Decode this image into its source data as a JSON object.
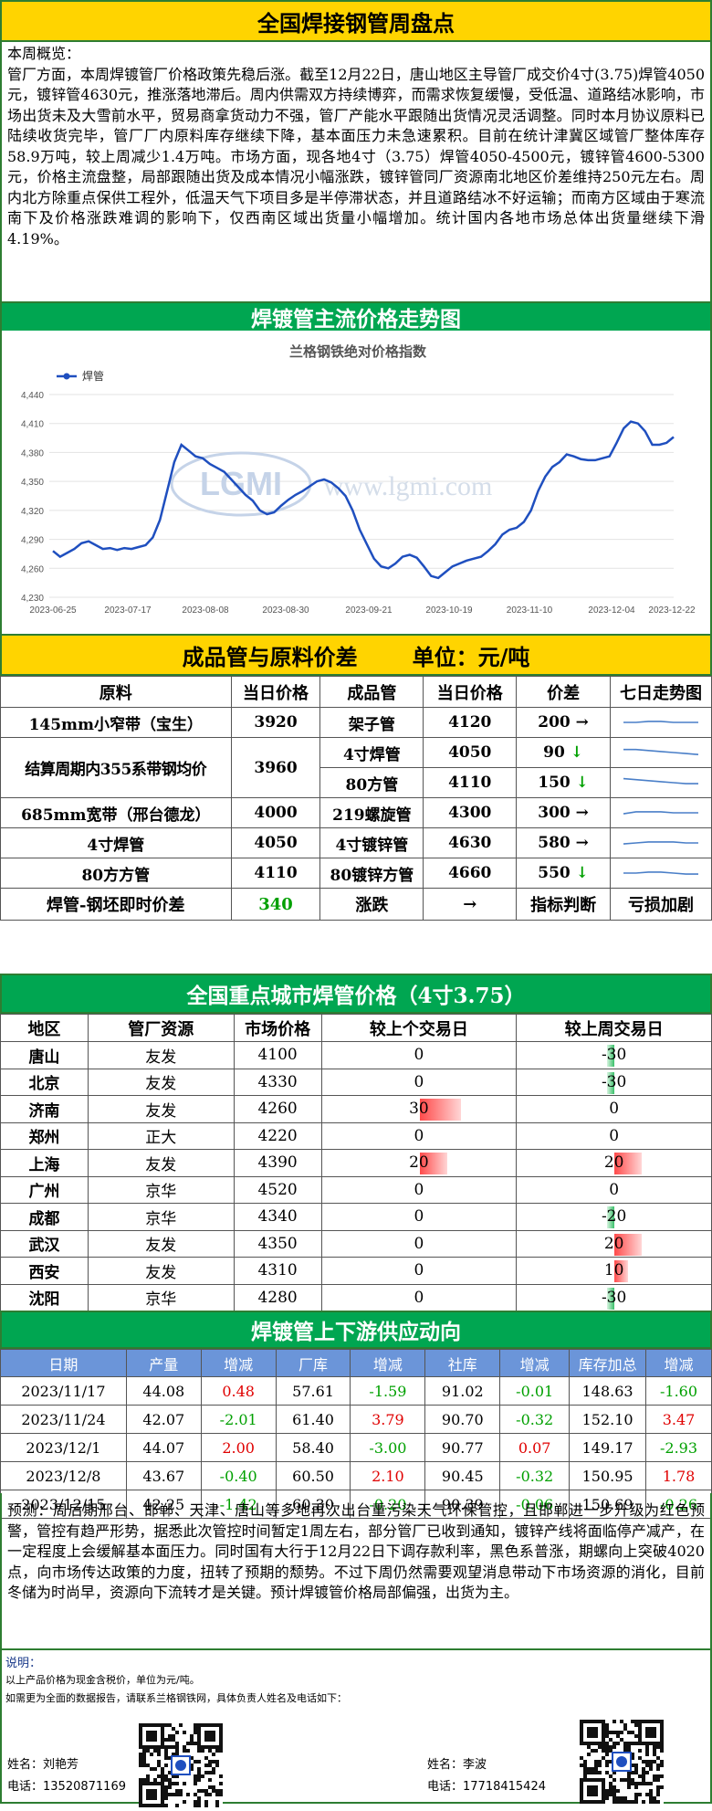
{
  "title": "全国焊接钢管周盘点",
  "overview": {
    "label": "本周概览：",
    "text": "管厂方面，本周焊镀管厂价格政策先稳后涨。截至12月22日，唐山地区主导管厂成交价4寸(3.75)焊管4050元，镀锌管4630元，推涨落地滞后。周内供需双方持续博弈，而需求恢复缓慢，受低温、道路结冰影响，市场出货未及大雪前水平，贸易商拿货动力不强，管厂产能水平跟随出货情况灵活调整。同时本月协议原料已陆续收货完毕，管厂厂内原料库存继续下降，基本面压力未急速累积。目前在统计津冀区域管厂整体库存58.9万吨，较上周减少1.4万吨。市场方面，现各地4寸（3.75）焊管4050-4500元，镀锌管4600-5300元，价格主流盘整，局部跟随出货及成本情况小幅涨跌，镀锌管同厂资源南北地区价差维持250元左右。周内北方除重点保供工程外，低温天气下项目多是半停滞状态，并且道路结冰不好运输；而南方区域由于寒流南下及价格涨跌难调的影响下，仅西南区域出货量小幅增加。统计国内各地市场总体出货量继续下滑4.19%。"
  },
  "chart_section_title": "焊镀管主流价格走势图",
  "chart_data": {
    "type": "line",
    "title": "兰格钢铁绝对价格指数",
    "watermark_logo": "LGMI",
    "watermark_url": "www.lgmi.com",
    "series": [
      {
        "name": "焊管",
        "color": "#1f4fbf",
        "values": [
          4278,
          4272,
          4276,
          4280,
          4286,
          4288,
          4284,
          4280,
          4281,
          4279,
          4281,
          4280,
          4282,
          4284,
          4292,
          4310,
          4340,
          4370,
          4388,
          4382,
          4376,
          4374,
          4368,
          4364,
          4360,
          4352,
          4344,
          4336,
          4330,
          4320,
          4316,
          4318,
          4325,
          4331,
          4336,
          4340,
          4345,
          4350,
          4352,
          4349,
          4343,
          4335,
          4320,
          4300,
          4285,
          4270,
          4262,
          4260,
          4265,
          4272,
          4274,
          4271,
          4262,
          4252,
          4250,
          4256,
          4262,
          4265,
          4268,
          4270,
          4272,
          4278,
          4285,
          4295,
          4300,
          4302,
          4308,
          4320,
          4340,
          4355,
          4365,
          4370,
          4378,
          4376,
          4373,
          4372,
          4372,
          4374,
          4376,
          4390,
          4405,
          4412,
          4410,
          4402,
          4388,
          4388,
          4390,
          4396
        ]
      }
    ],
    "x_ticks": [
      "2023-06-25",
      "2023-07-17",
      "2023-08-08",
      "2023-08-30",
      "2023-09-21",
      "2023-10-19",
      "2023-11-10",
      "2023-12-04",
      "2023-12-22"
    ],
    "y_ticks": [
      "4,440",
      "4,410",
      "4,380",
      "4,350",
      "4,320",
      "4,290",
      "4,260",
      "4,230"
    ],
    "ylim": [
      4230,
      4440
    ],
    "grid": "horizontal",
    "legend_position": "top-left"
  },
  "spread_section": {
    "title": "成品管与原料价差",
    "unit": "单位：元/吨",
    "headers": [
      "原料",
      "当日价格",
      "成品管",
      "当日价格",
      "价差",
      "七日走势图"
    ],
    "rows": [
      {
        "material": "145mm小窄带（宝生）",
        "material_price": "3920",
        "product": "架子管",
        "product_price": "4120",
        "spread": "200",
        "arrow": "→",
        "trend": "flat",
        "spark": [
          0.5,
          0.5,
          0.45,
          0.45,
          0.5,
          0.5,
          0.5
        ]
      },
      {
        "material": "结算周期内355系带钢均价",
        "material_price": "3960",
        "product": "4寸焊管",
        "product_price": "4050",
        "spread": "90",
        "arrow": "↓",
        "trend": "down",
        "spark": [
          0.35,
          0.35,
          0.4,
          0.45,
          0.5,
          0.55,
          0.6
        ]
      },
      {
        "material": "",
        "material_price": "",
        "product": "80方管",
        "product_price": "4110",
        "spread": "150",
        "arrow": "↓",
        "trend": "down",
        "spark": [
          0.3,
          0.35,
          0.4,
          0.45,
          0.5,
          0.55,
          0.55
        ]
      },
      {
        "material": "685mm宽带（邢台德龙）",
        "material_price": "4000",
        "product": "219螺旋管",
        "product_price": "4300",
        "spread": "300",
        "arrow": "→",
        "trend": "flat",
        "spark": [
          0.55,
          0.45,
          0.45,
          0.45,
          0.5,
          0.5,
          0.5
        ]
      },
      {
        "material": "4寸焊管",
        "material_price": "4050",
        "product": "4寸镀锌管",
        "product_price": "4630",
        "spread": "580",
        "arrow": "→",
        "trend": "flat",
        "spark": [
          0.55,
          0.5,
          0.45,
          0.45,
          0.45,
          0.5,
          0.5
        ]
      },
      {
        "material": "80方方管",
        "material_price": "4110",
        "product": "80镀锌方管",
        "product_price": "4660",
        "spread": "550",
        "arrow": "↓",
        "trend": "down",
        "spark": [
          0.5,
          0.5,
          0.45,
          0.45,
          0.5,
          0.55,
          0.55
        ]
      }
    ],
    "footer": {
      "label": "焊管-钢坯即时价差",
      "value": "340",
      "change_label": "涨跌",
      "change_value": "→",
      "judge_label": "指标判断",
      "judge_value": "亏损加剧"
    }
  },
  "city_section": {
    "title": "全国重点城市焊管价格（4寸3.75）",
    "headers": [
      "地区",
      "管厂资源",
      "市场价格",
      "较上个交易日",
      "较上周交易日"
    ],
    "rows": [
      {
        "city": "唐山",
        "source": "友发",
        "price": "4100",
        "day": "0",
        "day_val": 0,
        "week": "-30",
        "week_val": -30
      },
      {
        "city": "北京",
        "source": "友发",
        "price": "4330",
        "day": "0",
        "day_val": 0,
        "week": "-30",
        "week_val": -30
      },
      {
        "city": "济南",
        "source": "友发",
        "price": "4260",
        "day": "30",
        "day_val": 30,
        "week": "0",
        "week_val": 0
      },
      {
        "city": "郑州",
        "source": "正大",
        "price": "4220",
        "day": "0",
        "day_val": 0,
        "week": "0",
        "week_val": 0
      },
      {
        "city": "上海",
        "source": "友发",
        "price": "4390",
        "day": "20",
        "day_val": 20,
        "week": "20",
        "week_val": 20
      },
      {
        "city": "广州",
        "source": "京华",
        "price": "4520",
        "day": "0",
        "day_val": 0,
        "week": "0",
        "week_val": 0
      },
      {
        "city": "成都",
        "source": "京华",
        "price": "4340",
        "day": "0",
        "day_val": 0,
        "week": "-20",
        "week_val": -20
      },
      {
        "city": "武汉",
        "source": "友发",
        "price": "4350",
        "day": "0",
        "day_val": 0,
        "week": "20",
        "week_val": 20
      },
      {
        "city": "西安",
        "source": "友发",
        "price": "4310",
        "day": "0",
        "day_val": 0,
        "week": "10",
        "week_val": 10
      },
      {
        "city": "沈阳",
        "source": "京华",
        "price": "4280",
        "day": "0",
        "day_val": 0,
        "week": "-30",
        "week_val": -30
      }
    ]
  },
  "supply_section": {
    "title": "焊镀管上下游供应动向",
    "headers": [
      "日期",
      "产量",
      "增减",
      "厂库",
      "增减",
      "社库",
      "增减",
      "库存加总",
      "增减"
    ],
    "rows": [
      [
        "2023/11/17",
        "44.08",
        "0.48",
        "57.61",
        "-1.59",
        "91.02",
        "-0.01",
        "148.63",
        "-1.60"
      ],
      [
        "2023/11/24",
        "42.07",
        "-2.01",
        "61.40",
        "3.79",
        "90.70",
        "-0.32",
        "152.10",
        "3.47"
      ],
      [
        "2023/12/1",
        "44.07",
        "2.00",
        "58.40",
        "-3.00",
        "90.77",
        "0.07",
        "149.17",
        "-2.93"
      ],
      [
        "2023/12/8",
        "43.67",
        "-0.40",
        "60.50",
        "2.10",
        "90.45",
        "-0.32",
        "150.95",
        "1.78"
      ],
      [
        "2023/12/15",
        "42.25",
        "-1.42",
        "60.30",
        "-0.20",
        "90.39",
        "-0.06",
        "150.69",
        "-0.26"
      ]
    ]
  },
  "forecast": {
    "text": "预测：周后期邢台、邯郸、天津、唐山等多地再次出台重污染天气环保管控，且邯郸进一步升级为红色预警，管控有趋严形势，据悉此次管控时间暂定1周左右，部分管厂已收到通知，镀锌产线将面临停产减产，在一定程度上会缓解基本面压力。同时国有大行于12月22日下调存款利率，黑色系普涨，期螺向上突破4020点，向市场传达政策的力度，扭转了预期的颓势。不过下周仍然需要观望消息带动下市场资源的消化，目前冬储为时尚早，资源向下流转才是关键。预计焊镀管价格局部偏强，出货为主。"
  },
  "notes": {
    "label": "说明：",
    "line1": "以上产品价格为现金含税价，单位为元/吨。",
    "line2": "如需更为全面的数据报告，请联系兰格钢铁网，具体负责人姓名及电话如下："
  },
  "contacts": [
    {
      "name": "姓名：刘艳芳",
      "phone": "电话：13520871169"
    },
    {
      "name": "姓名：李波",
      "phone": "电话：17718415424"
    }
  ]
}
